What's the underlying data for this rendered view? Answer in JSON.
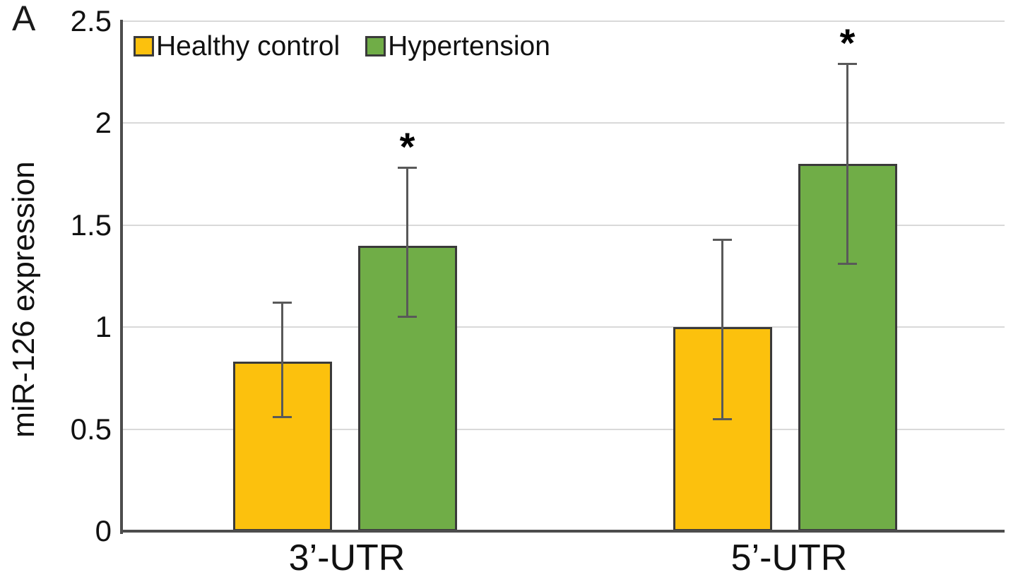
{
  "figure": {
    "panel_label": "A"
  },
  "chart_data": {
    "type": "bar",
    "title": "",
    "xlabel": "",
    "ylabel": "miR-126 expression",
    "categories": [
      "3’-UTR",
      "5’-UTR"
    ],
    "series": [
      {
        "name": "Healthy control",
        "color": "#FCC10D",
        "values": [
          0.83,
          1.0
        ],
        "error_low": [
          0.56,
          0.55
        ],
        "error_high": [
          1.12,
          1.43
        ],
        "significance": [
          "",
          ""
        ]
      },
      {
        "name": "Hypertension",
        "color": "#70AD47",
        "values": [
          1.4,
          1.8
        ],
        "error_low": [
          1.05,
          1.31
        ],
        "error_high": [
          1.78,
          2.29
        ],
        "significance": [
          "*",
          "*"
        ]
      }
    ],
    "ylim": [
      0,
      2.5
    ],
    "yticks": [
      {
        "value": 0,
        "label": "0"
      },
      {
        "value": 0.5,
        "label": "0.5"
      },
      {
        "value": 1,
        "label": "1"
      },
      {
        "value": 1.5,
        "label": "1.5"
      },
      {
        "value": 2,
        "label": "2"
      },
      {
        "value": 2.5,
        "label": "2.5"
      }
    ],
    "grid": "horizontal",
    "legend_position": "top-left-inside"
  },
  "colors": {
    "bar_border": "#3a3a3a",
    "error_bar": "#595959",
    "gridline": "#d9d9d9",
    "axis": "#4d4d4d",
    "text": "#111111",
    "background": "#ffffff"
  }
}
